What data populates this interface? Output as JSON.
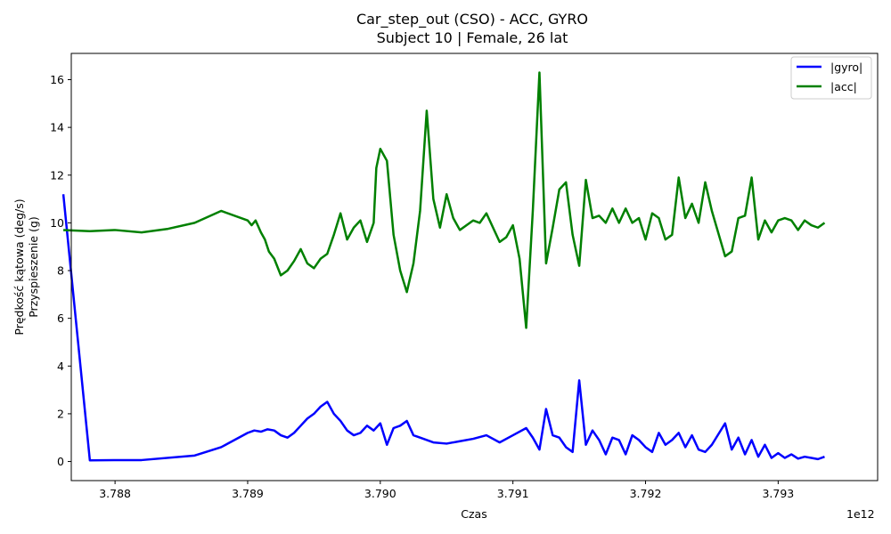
{
  "chart_data": {
    "type": "line",
    "title": "Car_step_out (CSO) - ACC, GYRO",
    "subtitle": "Subject 10 | Female, 26 lat",
    "xlabel": "Czas",
    "ylabel_line1": "Prędkość kątowa (deg/s)",
    "ylabel_line2": "Przyspieszenie (g)",
    "x_offset_label": "1e12",
    "xlim": [
      3.78767,
      3.79375
    ],
    "ylim": [
      -0.8,
      17.1
    ],
    "x_ticks": [
      3.788,
      3.789,
      3.79,
      3.791,
      3.792,
      3.793
    ],
    "x_tick_labels": [
      "3.788",
      "3.789",
      "3.790",
      "3.791",
      "3.792",
      "3.793"
    ],
    "y_ticks": [
      0,
      2,
      4,
      6,
      8,
      10,
      12,
      14,
      16
    ],
    "y_tick_labels": [
      "0",
      "2",
      "4",
      "6",
      "8",
      "10",
      "12",
      "14",
      "16"
    ],
    "grid": false,
    "legend_position": "top-right",
    "series": [
      {
        "name": "|gyro|",
        "color": "#0000ff",
        "points": [
          [
            3.78761,
            11.2
          ],
          [
            3.78781,
            0.05
          ],
          [
            3.788,
            0.06
          ],
          [
            3.7882,
            0.06
          ],
          [
            3.7886,
            0.25
          ],
          [
            3.7888,
            0.6
          ],
          [
            3.789,
            1.2
          ],
          [
            3.78905,
            1.3
          ],
          [
            3.7891,
            1.25
          ],
          [
            3.78915,
            1.35
          ],
          [
            3.7892,
            1.3
          ],
          [
            3.78925,
            1.1
          ],
          [
            3.7893,
            1.0
          ],
          [
            3.78935,
            1.2
          ],
          [
            3.7894,
            1.5
          ],
          [
            3.78945,
            1.8
          ],
          [
            3.7895,
            2.0
          ],
          [
            3.78955,
            2.3
          ],
          [
            3.7896,
            2.5
          ],
          [
            3.78965,
            2.0
          ],
          [
            3.7897,
            1.7
          ],
          [
            3.78975,
            1.3
          ],
          [
            3.7898,
            1.1
          ],
          [
            3.78985,
            1.2
          ],
          [
            3.7899,
            1.5
          ],
          [
            3.78995,
            1.3
          ],
          [
            3.79,
            1.6
          ],
          [
            3.79005,
            0.7
          ],
          [
            3.7901,
            1.4
          ],
          [
            3.79015,
            1.5
          ],
          [
            3.7902,
            1.7
          ],
          [
            3.79025,
            1.1
          ],
          [
            3.7903,
            1.0
          ],
          [
            3.7904,
            0.8
          ],
          [
            3.7905,
            0.75
          ],
          [
            3.7906,
            0.85
          ],
          [
            3.7907,
            0.95
          ],
          [
            3.7908,
            1.1
          ],
          [
            3.7909,
            0.8
          ],
          [
            3.791,
            1.1
          ],
          [
            3.7911,
            1.4
          ],
          [
            3.79115,
            1.0
          ],
          [
            3.7912,
            0.5
          ],
          [
            3.79125,
            2.2
          ],
          [
            3.7913,
            1.1
          ],
          [
            3.79135,
            1.0
          ],
          [
            3.7914,
            0.6
          ],
          [
            3.79145,
            0.4
          ],
          [
            3.7915,
            3.4
          ],
          [
            3.79155,
            0.7
          ],
          [
            3.7916,
            1.3
          ],
          [
            3.79165,
            0.9
          ],
          [
            3.7917,
            0.3
          ],
          [
            3.79175,
            1.0
          ],
          [
            3.7918,
            0.9
          ],
          [
            3.79185,
            0.3
          ],
          [
            3.7919,
            1.1
          ],
          [
            3.79195,
            0.9
          ],
          [
            3.792,
            0.6
          ],
          [
            3.79205,
            0.4
          ],
          [
            3.7921,
            1.2
          ],
          [
            3.79215,
            0.7
          ],
          [
            3.7922,
            0.9
          ],
          [
            3.79225,
            1.2
          ],
          [
            3.7923,
            0.6
          ],
          [
            3.79235,
            1.1
          ],
          [
            3.7924,
            0.5
          ],
          [
            3.79245,
            0.4
          ],
          [
            3.7925,
            0.7
          ],
          [
            3.7926,
            1.6
          ],
          [
            3.79265,
            0.5
          ],
          [
            3.7927,
            1.0
          ],
          [
            3.79275,
            0.3
          ],
          [
            3.7928,
            0.9
          ],
          [
            3.79285,
            0.2
          ],
          [
            3.7929,
            0.7
          ],
          [
            3.79295,
            0.15
          ],
          [
            3.793,
            0.35
          ],
          [
            3.79305,
            0.15
          ],
          [
            3.7931,
            0.3
          ],
          [
            3.79315,
            0.12
          ],
          [
            3.7932,
            0.2
          ],
          [
            3.79325,
            0.15
          ],
          [
            3.7933,
            0.1
          ],
          [
            3.79335,
            0.2
          ]
        ]
      },
      {
        "name": "|acc|",
        "color": "#008000",
        "points": [
          [
            3.78761,
            9.7
          ],
          [
            3.78781,
            9.65
          ],
          [
            3.788,
            9.7
          ],
          [
            3.7882,
            9.6
          ],
          [
            3.7884,
            9.75
          ],
          [
            3.7886,
            10.0
          ],
          [
            3.7888,
            10.5
          ],
          [
            3.789,
            10.1
          ],
          [
            3.78903,
            9.9
          ],
          [
            3.78906,
            10.1
          ],
          [
            3.7891,
            9.6
          ],
          [
            3.78913,
            9.3
          ],
          [
            3.78916,
            8.8
          ],
          [
            3.7892,
            8.5
          ],
          [
            3.78925,
            7.8
          ],
          [
            3.7893,
            8.0
          ],
          [
            3.78935,
            8.4
          ],
          [
            3.7894,
            8.9
          ],
          [
            3.78945,
            8.3
          ],
          [
            3.7895,
            8.1
          ],
          [
            3.78955,
            8.5
          ],
          [
            3.7896,
            8.7
          ],
          [
            3.78965,
            9.5
          ],
          [
            3.7897,
            10.4
          ],
          [
            3.78975,
            9.3
          ],
          [
            3.7898,
            9.8
          ],
          [
            3.78985,
            10.1
          ],
          [
            3.7899,
            9.2
          ],
          [
            3.78995,
            10.0
          ],
          [
            3.78997,
            12.3
          ],
          [
            3.79,
            13.1
          ],
          [
            3.79005,
            12.6
          ],
          [
            3.7901,
            9.5
          ],
          [
            3.79015,
            8.0
          ],
          [
            3.7902,
            7.1
          ],
          [
            3.79025,
            8.3
          ],
          [
            3.7903,
            10.5
          ],
          [
            3.79035,
            14.7
          ],
          [
            3.7904,
            11.0
          ],
          [
            3.79045,
            9.8
          ],
          [
            3.7905,
            11.2
          ],
          [
            3.79055,
            10.2
          ],
          [
            3.7906,
            9.7
          ],
          [
            3.7907,
            10.1
          ],
          [
            3.79075,
            10.0
          ],
          [
            3.7908,
            10.4
          ],
          [
            3.7909,
            9.2
          ],
          [
            3.79095,
            9.4
          ],
          [
            3.791,
            9.9
          ],
          [
            3.79105,
            8.5
          ],
          [
            3.7911,
            5.6
          ],
          [
            3.79115,
            10.5
          ],
          [
            3.7912,
            16.3
          ],
          [
            3.79125,
            8.3
          ],
          [
            3.7913,
            9.8
          ],
          [
            3.79135,
            11.4
          ],
          [
            3.7914,
            11.7
          ],
          [
            3.79145,
            9.5
          ],
          [
            3.7915,
            8.2
          ],
          [
            3.79155,
            11.8
          ],
          [
            3.7916,
            10.2
          ],
          [
            3.79165,
            10.3
          ],
          [
            3.7917,
            10.0
          ],
          [
            3.79175,
            10.6
          ],
          [
            3.7918,
            10.0
          ],
          [
            3.79185,
            10.6
          ],
          [
            3.7919,
            10.0
          ],
          [
            3.79195,
            10.2
          ],
          [
            3.792,
            9.3
          ],
          [
            3.79205,
            10.4
          ],
          [
            3.7921,
            10.2
          ],
          [
            3.79215,
            9.3
          ],
          [
            3.7922,
            9.5
          ],
          [
            3.79225,
            11.9
          ],
          [
            3.7923,
            10.2
          ],
          [
            3.79235,
            10.8
          ],
          [
            3.7924,
            10.0
          ],
          [
            3.79245,
            11.7
          ],
          [
            3.7925,
            10.5
          ],
          [
            3.7926,
            8.6
          ],
          [
            3.79265,
            8.8
          ],
          [
            3.7927,
            10.2
          ],
          [
            3.79275,
            10.3
          ],
          [
            3.7928,
            11.9
          ],
          [
            3.79285,
            9.3
          ],
          [
            3.7929,
            10.1
          ],
          [
            3.79295,
            9.6
          ],
          [
            3.793,
            10.1
          ],
          [
            3.79305,
            10.2
          ],
          [
            3.7931,
            10.1
          ],
          [
            3.79315,
            9.7
          ],
          [
            3.7932,
            10.1
          ],
          [
            3.79325,
            9.9
          ],
          [
            3.7933,
            9.8
          ],
          [
            3.79335,
            10.0
          ]
        ]
      }
    ]
  }
}
